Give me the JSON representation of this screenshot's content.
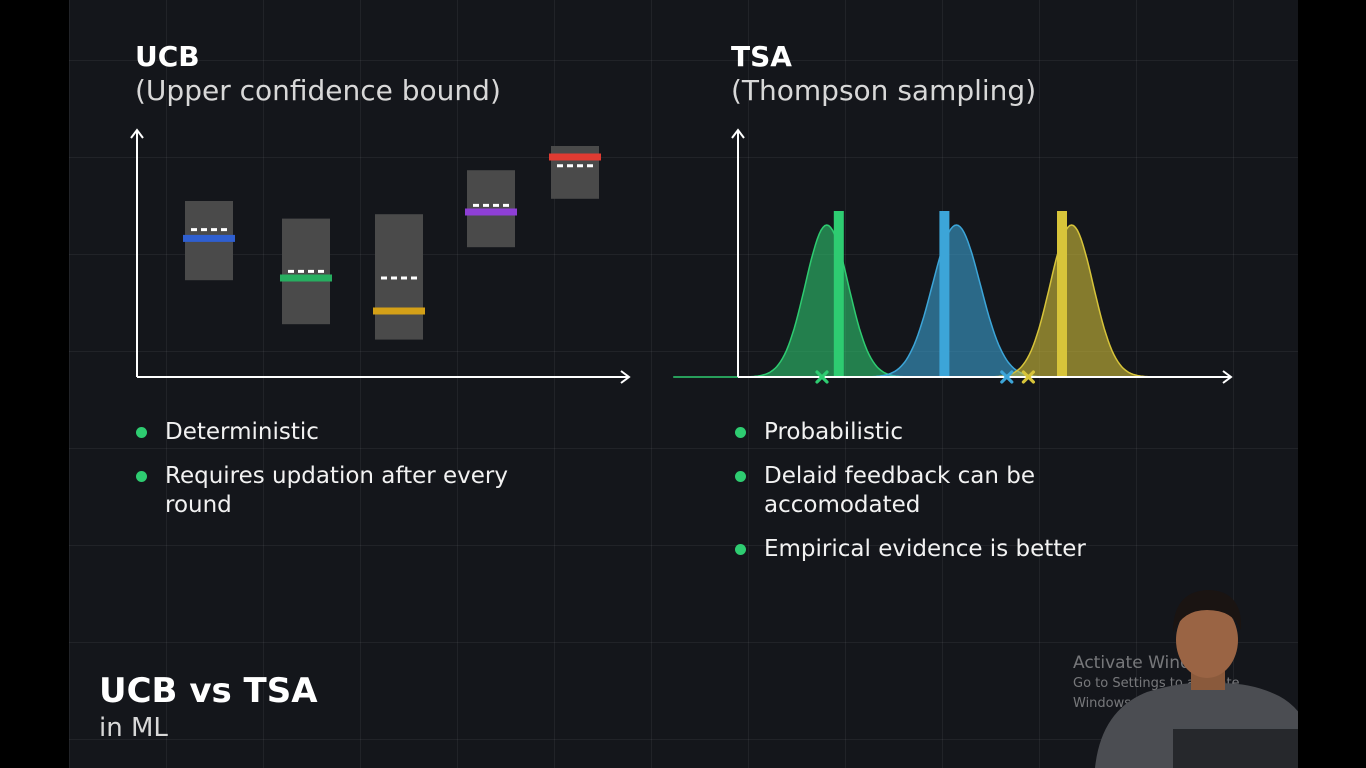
{
  "ucb": {
    "title": "UCB",
    "subtitle": "(Upper confidence bound)",
    "bullets": [
      "Deterministic",
      "Requires updation after every round"
    ],
    "boxes": [
      {
        "low": 0.44,
        "high": 0.8,
        "estimate": 0.67,
        "bound": 0.63,
        "color": "#2f5fd0"
      },
      {
        "low": 0.24,
        "high": 0.72,
        "estimate": 0.48,
        "bound": 0.45,
        "color": "#27ae60"
      },
      {
        "low": 0.17,
        "high": 0.74,
        "estimate": 0.45,
        "bound": 0.3,
        "color": "#d4a017"
      },
      {
        "low": 0.59,
        "high": 0.94,
        "estimate": 0.78,
        "bound": 0.75,
        "color": "#8e3fd6"
      },
      {
        "low": 0.81,
        "high": 1.05,
        "estimate": 0.96,
        "bound": 1.0,
        "color": "#e03b32"
      }
    ]
  },
  "tsa": {
    "title": "TSA",
    "subtitle": "(Thompson sampling)",
    "bullets": [
      "Probabilistic",
      "Delaid feedback can be accomodated",
      "Empirical evidence is better"
    ],
    "distributions": [
      {
        "mean": 0.185,
        "sd": 0.045,
        "bar": 0.21,
        "sample": 0.175,
        "color": "#2ecc71"
      },
      {
        "mean": 0.455,
        "sd": 0.05,
        "bar": 0.43,
        "sample": 0.56,
        "color": "#3ca5d8"
      },
      {
        "mean": 0.695,
        "sd": 0.045,
        "bar": 0.675,
        "sample": 0.605,
        "color": "#d7c43a"
      }
    ]
  },
  "footer": {
    "title": "UCB vs TSA",
    "subtitle": "in ML"
  },
  "watermark": {
    "line1": "Activate Windows",
    "line2": "Go to Settings to activate Windows."
  },
  "colors": {
    "bullet": "#2ecc71",
    "axis": "#ffffff",
    "box": "#4a4a4a",
    "background": "#14161b"
  }
}
